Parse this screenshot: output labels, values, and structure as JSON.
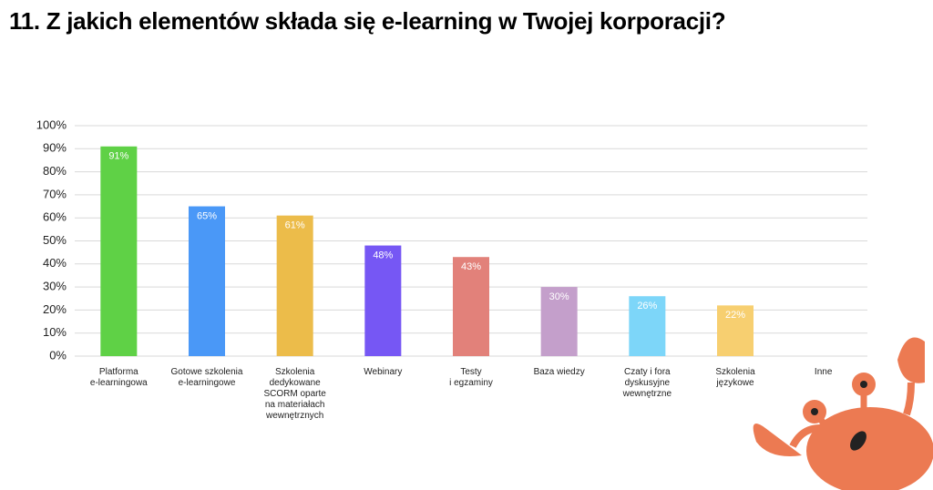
{
  "chart_data": {
    "type": "bar",
    "title": "11. Z jakich elementów składa się e-learning w Twojej korporacji?",
    "categories": [
      "Platforma\ne-learningowa",
      "Gotowe szkolenia\ne-learningowe",
      "Szkolenia\ndedykowane\nSCORM oparte\nna materiałach\nwewnętrznych",
      "Webinary",
      "Testy\ni egzaminy",
      "Baza wiedzy",
      "Czaty i fora\ndyskusyjne\nwewnętrzne",
      "Szkolenia\njęzykowe",
      "Inne"
    ],
    "values": [
      91,
      65,
      61,
      48,
      43,
      30,
      26,
      22,
      null
    ],
    "value_labels": [
      "91%",
      "65%",
      "61%",
      "48%",
      "43%",
      "30%",
      "26%",
      "22%",
      null
    ],
    "colors": [
      "#5fd146",
      "#4a98f7",
      "#ecbc4a",
      "#7657f4",
      "#e2817a",
      "#c49fcb",
      "#7dd6f9",
      "#f7cf70",
      null
    ],
    "ylim": [
      0,
      100
    ],
    "yticks": [
      {
        "value": 0,
        "label": "0%"
      },
      {
        "value": 10,
        "label": "10%"
      },
      {
        "value": 20,
        "label": "20%"
      },
      {
        "value": 30,
        "label": "30%"
      },
      {
        "value": 40,
        "label": "40%"
      },
      {
        "value": 50,
        "label": "50%"
      },
      {
        "value": 60,
        "label": "60%"
      },
      {
        "value": 70,
        "label": "70%"
      },
      {
        "value": 80,
        "label": "80%"
      },
      {
        "value": 90,
        "label": "90%"
      },
      {
        "value": 100,
        "label": "100%"
      }
    ],
    "grid": true
  }
}
